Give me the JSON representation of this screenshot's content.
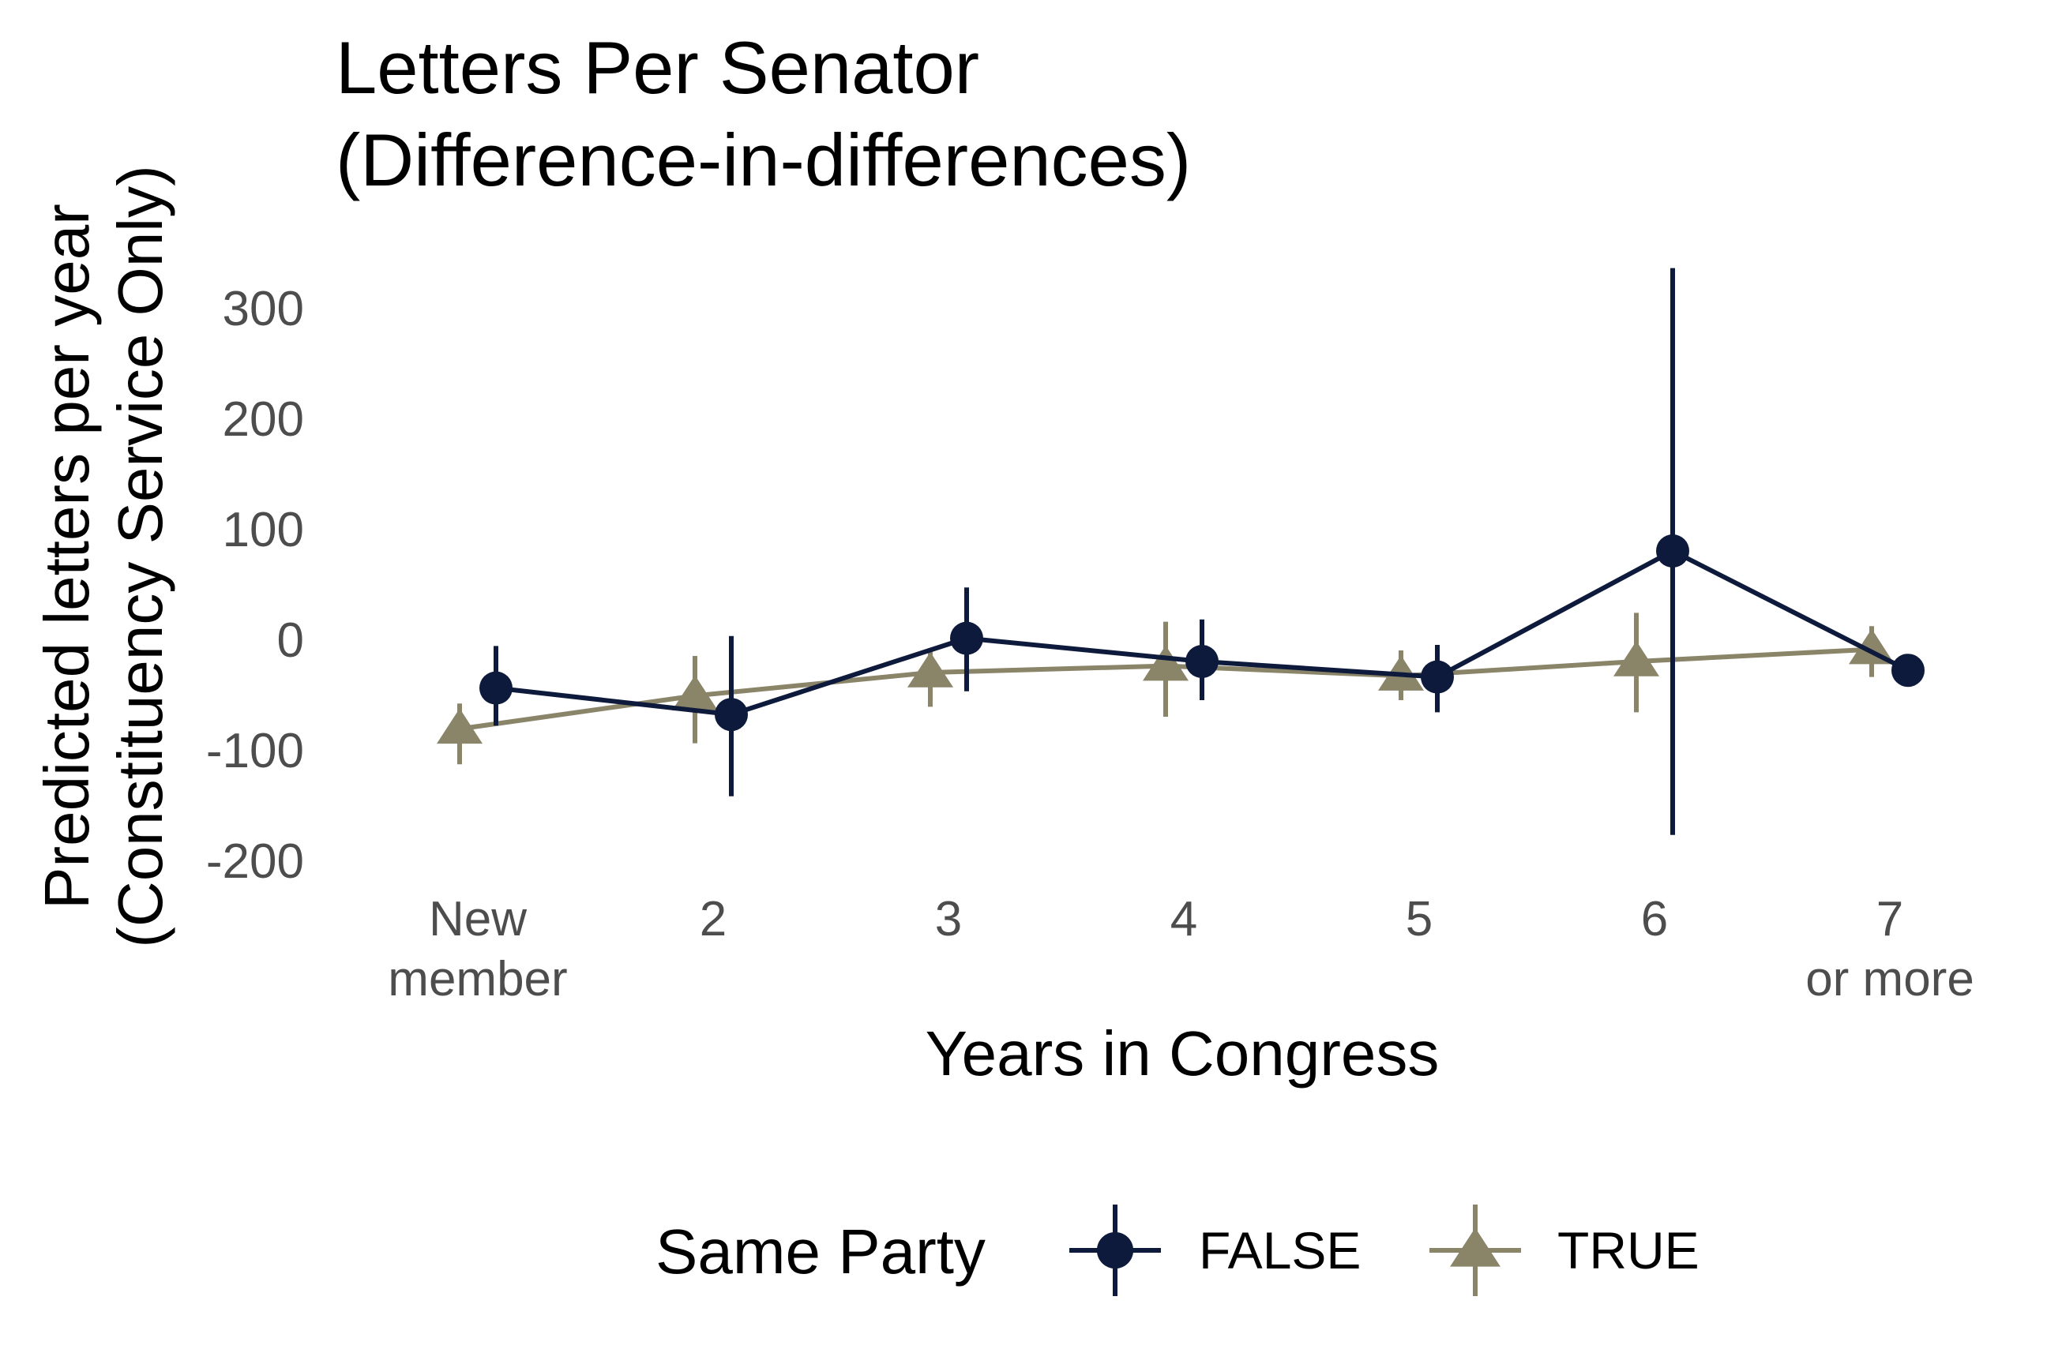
{
  "chart_data": {
    "type": "line",
    "title": [
      "Letters Per Senator",
      "(Difference-in-differences)"
    ],
    "xlabel": "Years in Congress",
    "ylabel": [
      "Predicted letters per year",
      "(Constituency Service Only)"
    ],
    "categories": [
      [
        "New",
        "member"
      ],
      [
        "2"
      ],
      [
        "3"
      ],
      [
        "4"
      ],
      [
        "5"
      ],
      [
        "6"
      ],
      [
        "7",
        "or more"
      ]
    ],
    "ylim": [
      -200,
      300
    ],
    "yticks": [
      300,
      200,
      100,
      0,
      -100,
      -200
    ],
    "grid": false,
    "legend": {
      "title": "Same Party",
      "position": "bottom"
    },
    "series": [
      {
        "name": "FALSE",
        "color": "#0d1a3b",
        "marker": "circle",
        "values": [
          -44,
          -68,
          1,
          -20,
          -34,
          80,
          -28
        ],
        "lower": [
          -78,
          -142,
          -47,
          -55,
          -66,
          -177,
          -28
        ],
        "upper": [
          -6,
          3,
          47,
          18,
          -5,
          336,
          -28
        ]
      },
      {
        "name": "TRUE",
        "color": "#8a8469",
        "marker": "triangle",
        "values": [
          -81,
          -51,
          -30,
          -24,
          -33,
          -20,
          -9
        ],
        "lower": [
          -113,
          -94,
          -61,
          -70,
          -55,
          -66,
          -34
        ],
        "upper": [
          -58,
          -15,
          -8,
          16,
          -10,
          24,
          12
        ]
      }
    ]
  }
}
